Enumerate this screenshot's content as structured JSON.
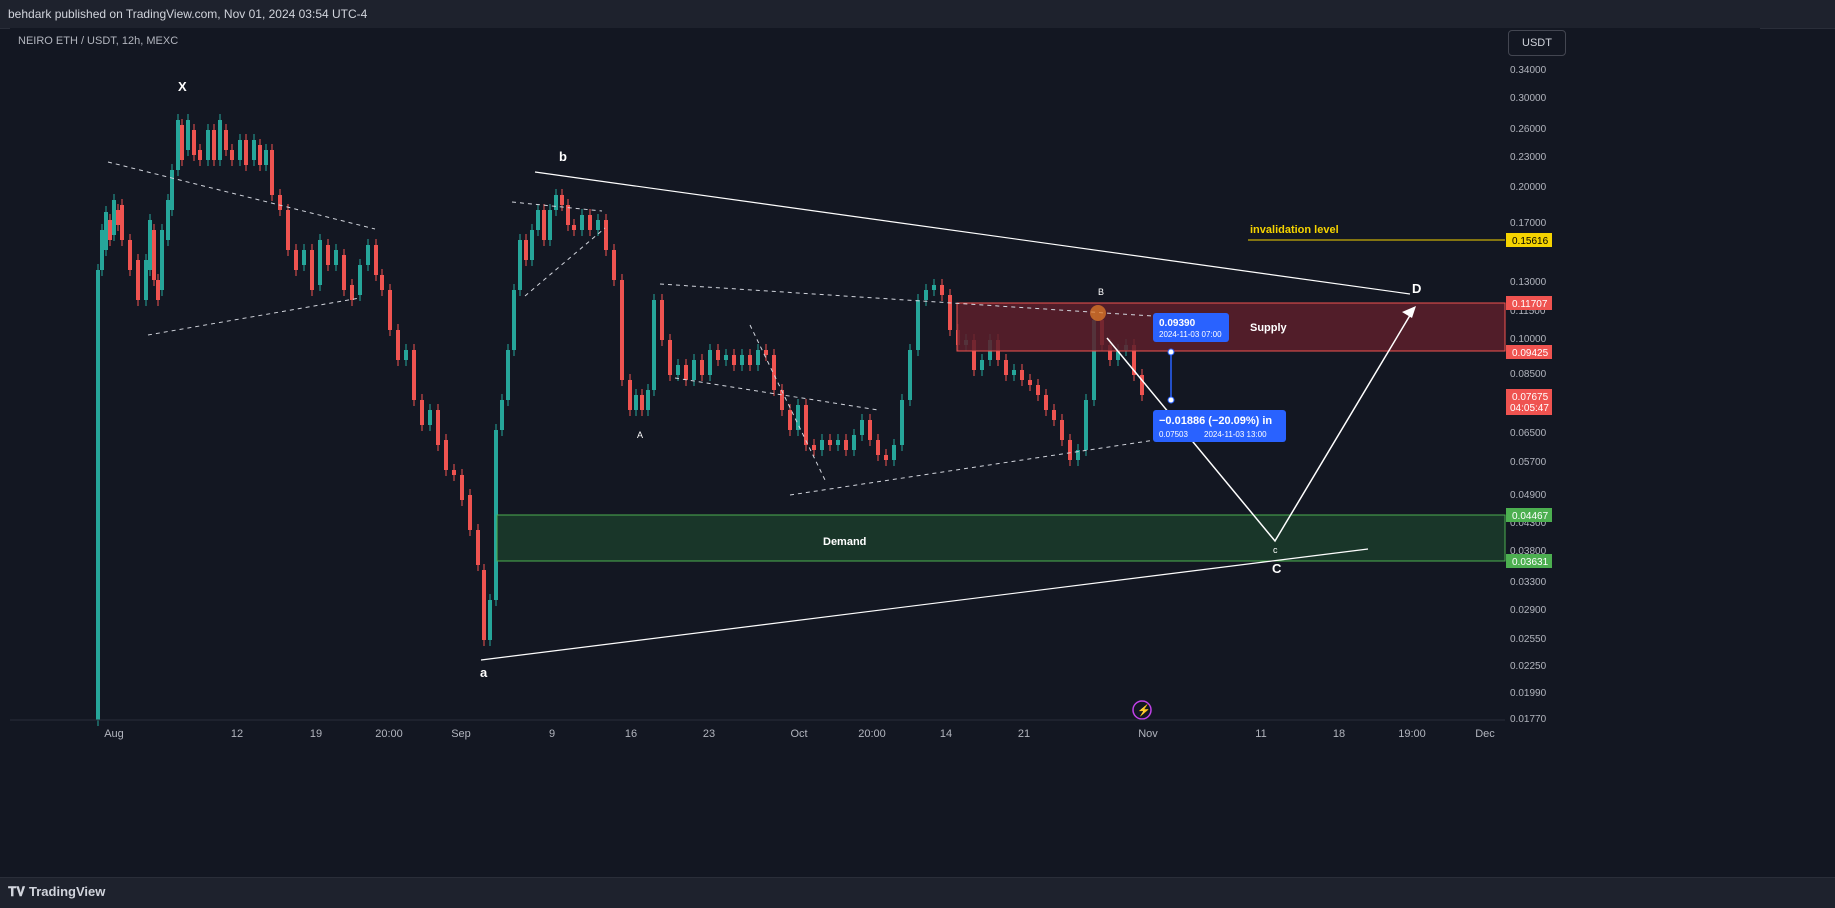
{
  "header": {
    "publisher_text": "behdark published on TradingView.com, Nov 01, 2024 03:54 UTC-4"
  },
  "symbol_label": "NEIRO ETH / USDT, 12h, MEXC",
  "currency_button": "USDT",
  "footer": {
    "brand": "TradingView"
  },
  "price_ticks": [
    "0.34000",
    "0.30000",
    "0.26000",
    "0.23000",
    "0.20000",
    "0.17000",
    "0.15000",
    "0.13000",
    "0.11500",
    "0.10000",
    "0.08500",
    "0.07500",
    "0.06500",
    "0.05700",
    "0.04900",
    "0.04300",
    "0.03800",
    "0.03300",
    "0.02900",
    "0.02550",
    "0.02250",
    "0.01990",
    "0.01770"
  ],
  "time_ticks": [
    "Aug",
    "12",
    "19",
    "20:00",
    "Sep",
    "9",
    "16",
    "23",
    "Oct",
    "20:00",
    "14",
    "21",
    "Nov",
    "11",
    "18",
    "19:00",
    "Dec"
  ],
  "price_labels": {
    "invalidation": "0.15616",
    "supply_top": "0.11707",
    "supply_bottom": "0.09425",
    "last_price": "0.07675",
    "countdown": "04:05:47",
    "demand_top": "0.04467",
    "demand_bottom": "0.03631"
  },
  "annotations": {
    "invalidation_text": "invalidation level",
    "supply_text": "Supply",
    "demand_text": "Demand",
    "wave_X": "X",
    "wave_a_lower": "a",
    "wave_b_lower": "b",
    "wave_A_upper": "A",
    "wave_B_upper": "B",
    "wave_c_lower": "c",
    "wave_C_upper": "C",
    "wave_D_upper": "D"
  },
  "measure_box": {
    "top_price": "0.09390",
    "top_time": "2024-11-03 07:00",
    "change": "−0.01886 (−20.09%) in",
    "bottom_price": "0.07503",
    "bottom_time": "2024-11-03  13:00"
  },
  "colors": {
    "background": "#131722",
    "up_candle": "#26a69a",
    "down_candle": "#ef5350",
    "supply_zone": "#5d1f2a",
    "demand_zone": "#1b3a2a",
    "invalidation": "#f5d300",
    "accent_blue": "#2962ff"
  },
  "icons": {
    "lightning": "lightning-icon",
    "logo": "tradingview-logo-icon"
  }
}
